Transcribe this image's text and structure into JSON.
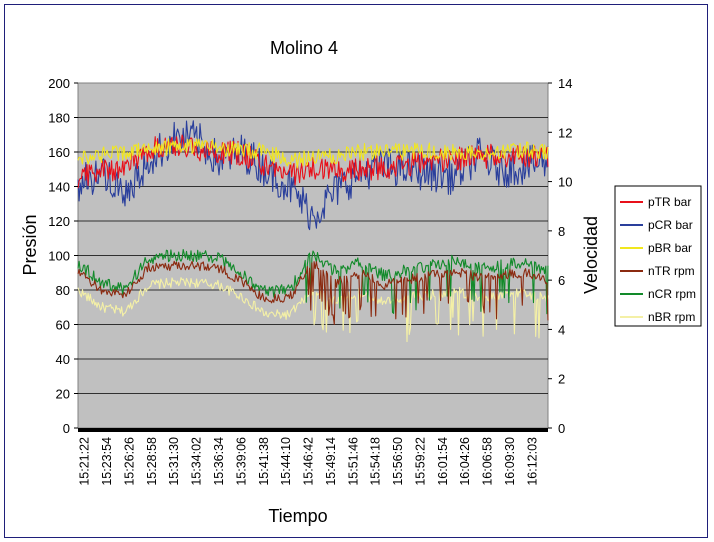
{
  "chart_data": {
    "type": "line",
    "title": "Molino 4",
    "xlabel": "Tiempo",
    "ylabel": "Presión",
    "y2label": "Velocidad",
    "ylim": [
      0,
      200
    ],
    "y2lim": [
      0,
      14
    ],
    "yticks": [
      "0",
      "20",
      "40",
      "60",
      "80",
      "100",
      "120",
      "140",
      "160",
      "180",
      "200"
    ],
    "y2ticks": [
      "0",
      "2",
      "4",
      "6",
      "8",
      "10",
      "12",
      "14"
    ],
    "grid": true,
    "legend_position": "right",
    "categories": [
      "15:21:22",
      "15:23:54",
      "15:26:26",
      "15:28:58",
      "15:31:30",
      "15:34:02",
      "15:36:34",
      "15:39:06",
      "15:41:38",
      "15:44:10",
      "15:46:42",
      "15:49:14",
      "15:51:46",
      "15:54:18",
      "15:56:50",
      "15:59:22",
      "16:01:54",
      "16:04:26",
      "16:06:58",
      "16:09:30",
      "16:12:03"
    ],
    "series": [
      {
        "name": "pTR bar",
        "axis": "left",
        "color": "#e8101a",
        "values": [
          146,
          149,
          151,
          161,
          165,
          162,
          160,
          159,
          152,
          147,
          150,
          149,
          150,
          151,
          152,
          155,
          156,
          157,
          158,
          157,
          158
        ]
      },
      {
        "name": "pCR bar",
        "axis": "left",
        "color": "#2a3f9c",
        "values": [
          140,
          150,
          132,
          155,
          167,
          168,
          155,
          160,
          150,
          140,
          123,
          138,
          148,
          152,
          150,
          148,
          146,
          158,
          150,
          152,
          155
        ]
      },
      {
        "name": "pBR bar",
        "axis": "left",
        "color": "#f1e71e",
        "values": [
          157,
          158,
          160,
          162,
          163,
          164,
          162,
          161,
          160,
          155,
          157,
          158,
          160,
          161,
          160,
          161,
          160,
          159,
          160,
          161,
          161
        ]
      },
      {
        "name": "nTR rpm",
        "axis": "right",
        "color": "#8b2a10",
        "values": [
          6.3,
          5.6,
          5.4,
          6.5,
          6.6,
          6.6,
          6.5,
          5.9,
          5.2,
          5.3,
          6.7,
          5.9,
          6.3,
          5.8,
          6.0,
          6.2,
          6.4,
          6.1,
          6.2,
          6.3,
          6.0
        ]
      },
      {
        "name": "nCR rpm",
        "axis": "right",
        "color": "#128a2a",
        "values": [
          6.7,
          5.9,
          5.6,
          6.9,
          7.0,
          7.0,
          6.9,
          6.2,
          5.5,
          5.6,
          7.1,
          6.3,
          6.7,
          6.2,
          6.4,
          6.6,
          6.8,
          6.5,
          6.6,
          6.7,
          6.4
        ]
      },
      {
        "name": "nBR rpm",
        "axis": "right",
        "color": "#f4f0a6",
        "values": [
          5.6,
          4.9,
          4.7,
          5.8,
          5.9,
          5.9,
          5.8,
          5.3,
          4.6,
          4.6,
          5.6,
          5.1,
          5.5,
          5.1,
          5.3,
          5.4,
          5.6,
          5.3,
          5.4,
          5.5,
          5.2
        ]
      }
    ]
  }
}
